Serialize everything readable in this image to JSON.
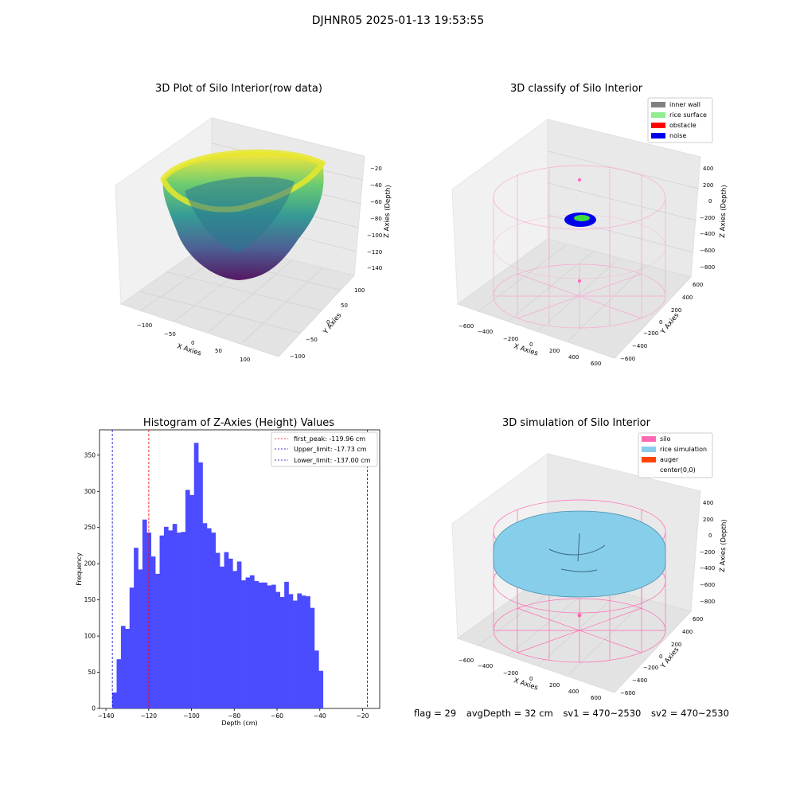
{
  "main_title": "DJHNR05 2025-01-13 19:53:55",
  "panels": {
    "p1": {
      "title": "3D Plot of Silo Interior(row data)",
      "xlabel": "X Axies",
      "ylabel": "Y Axies",
      "zlabel": "Z Axies (Depth)",
      "xticks": [
        "−100",
        "−50",
        "0",
        "50",
        "100"
      ],
      "yticks": [
        "100",
        "50",
        "0",
        "−50",
        "−100"
      ],
      "zticks": [
        "−20",
        "−40",
        "−60",
        "−80",
        "−100",
        "−120",
        "−140"
      ]
    },
    "p2": {
      "title": "3D classify of Silo Interior",
      "xlabel": "X Axies",
      "ylabel": "Y Axies",
      "zlabel": "Z Axies (Depth)",
      "xticks": [
        "−600",
        "−400",
        "−200",
        "0",
        "200",
        "400",
        "600"
      ],
      "yticks": [
        "600",
        "400",
        "200",
        "0",
        "−200",
        "−400",
        "−600"
      ],
      "zticks": [
        "400",
        "200",
        "0",
        "−200",
        "−400",
        "−600",
        "−800"
      ],
      "legend": [
        {
          "label": "inner wall",
          "color": "#808080"
        },
        {
          "label": "rice surface",
          "color": "#90ee90"
        },
        {
          "label": "obstacle",
          "color": "#ff0000"
        },
        {
          "label": "noise",
          "color": "#0000ee"
        }
      ]
    },
    "p4": {
      "title": "3D simulation of Silo Interior",
      "xlabel": "X Axies",
      "ylabel": "Y Axies",
      "zlabel": "Z Axies (Depth)",
      "xticks": [
        "−600",
        "−400",
        "−200",
        "0",
        "200",
        "400",
        "600"
      ],
      "yticks": [
        "600",
        "400",
        "200",
        "0",
        "−200",
        "−400",
        "−600"
      ],
      "zticks": [
        "400",
        "200",
        "0",
        "−200",
        "−400",
        "−600",
        "−800"
      ],
      "legend": [
        {
          "label": "silo",
          "color": "#ff69b4"
        },
        {
          "label": "rice simulation",
          "color": "#87ceeb"
        },
        {
          "label": "auger",
          "color": "#ff4500"
        },
        {
          "label": "center(0,0)",
          "color": "#ffffff"
        }
      ]
    }
  },
  "footer": {
    "flag": "flag = 29",
    "avg": "avgDepth = 32 cm",
    "sv1": "sv1 = 470~2530",
    "sv2": "sv2 = 470~2530"
  },
  "chart_data": [
    {
      "type": "bar",
      "title": "Histogram of Z-Axies (Height) Values",
      "xlabel": "Depth (cm)",
      "ylabel": "Frequency",
      "xlim": [
        -143,
        -12
      ],
      "ylim": [
        0,
        385
      ],
      "xticks": [
        -140,
        -120,
        -100,
        -80,
        -60,
        -40,
        -20
      ],
      "yticks": [
        0,
        50,
        100,
        150,
        200,
        250,
        300,
        350
      ],
      "bin_start": -137.0,
      "bin_width": 2.01,
      "values": [
        22,
        68,
        114,
        110,
        167,
        222,
        192,
        261,
        243,
        210,
        186,
        239,
        251,
        246,
        255,
        243,
        244,
        302,
        295,
        367,
        340,
        256,
        249,
        243,
        215,
        196,
        216,
        207,
        190,
        203,
        177,
        181,
        184,
        176,
        174,
        174,
        170,
        171,
        161,
        154,
        175,
        158,
        149,
        159,
        156,
        155,
        139,
        80,
        52
      ],
      "color": "#4b4bff",
      "vlines": [
        {
          "label": "first_peak: -119.96 cm",
          "x": -119.96,
          "color": "#ff0000"
        },
        {
          "label": "Upper_limit: -17.73 cm",
          "x": -17.73,
          "color": "#0000cc"
        },
        {
          "label": "Lower_limit: -137.00 cm",
          "x": -137.0,
          "color": "#0000cc"
        }
      ],
      "legend_position": "top-right"
    }
  ]
}
